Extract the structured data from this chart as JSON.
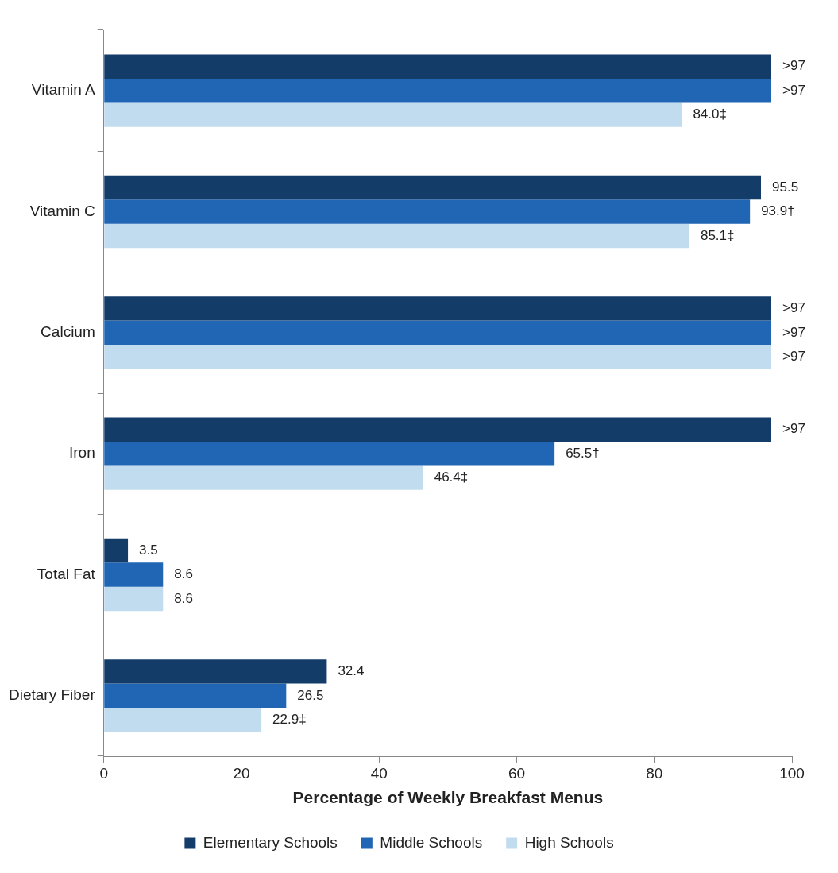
{
  "chart_data": {
    "type": "bar",
    "orientation": "horizontal",
    "xlabel": "Percentage of Weekly Breakfast Menus",
    "categories": [
      "Vitamin A",
      "Vitamin C",
      "Calcium",
      "Iron",
      "Total Fat",
      "Dietary Fiber"
    ],
    "series": [
      {
        "name": "Elementary Schools",
        "color": "#133c68",
        "values": [
          97,
          95.5,
          97,
          97,
          3.5,
          32.4
        ],
        "value_labels": [
          ">97",
          "95.5",
          ">97",
          ">97",
          "3.5",
          "32.4"
        ]
      },
      {
        "name": "Middle Schools",
        "color": "#2166b4",
        "values": [
          97,
          93.9,
          97,
          65.5,
          8.6,
          26.5
        ],
        "value_labels": [
          ">97",
          "93.9†",
          ">97",
          "65.5†",
          "8.6",
          "26.5"
        ]
      },
      {
        "name": "High Schools",
        "color": "#c2dcef",
        "values": [
          84.0,
          85.1,
          97,
          46.4,
          8.6,
          22.9
        ],
        "value_labels": [
          "84.0‡",
          "85.1‡",
          ">97",
          "46.4‡",
          "8.6",
          "22.9‡"
        ]
      }
    ],
    "xlim": [
      0,
      100
    ],
    "xticks": [
      0,
      20,
      40,
      60,
      80,
      100
    ],
    "legend": "bottom"
  }
}
